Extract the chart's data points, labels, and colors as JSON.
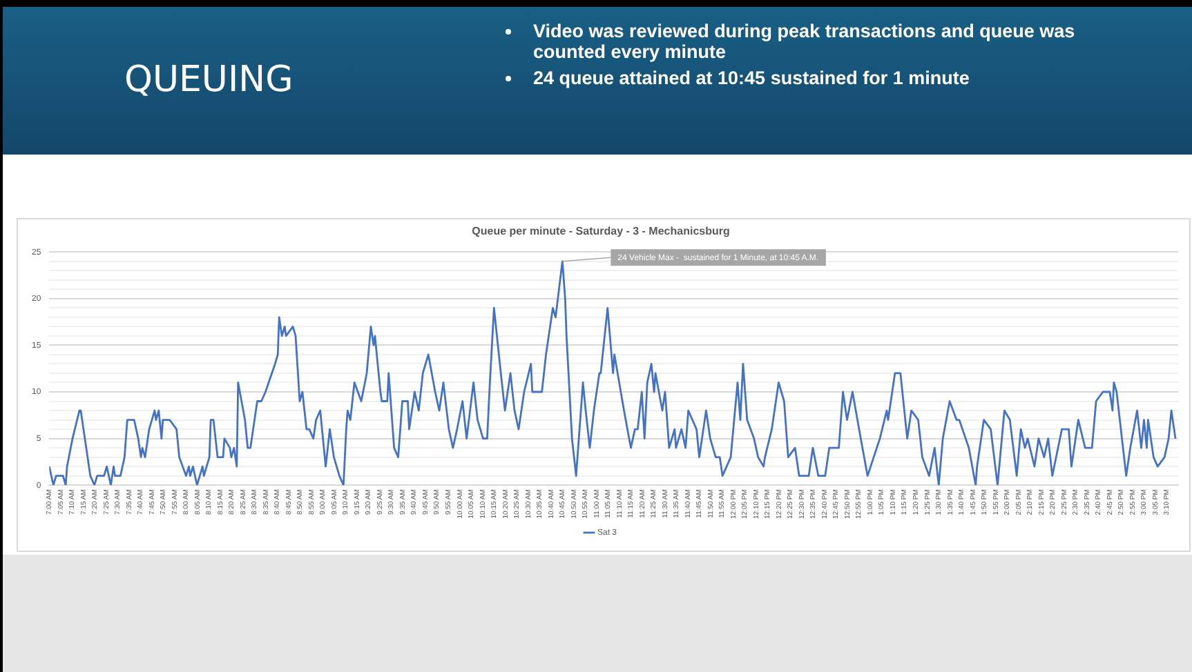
{
  "chart_data": {
    "type": "line",
    "title": "QUEUING",
    "subtitle": "Queue per minute - Saturday - 3 - Mechanicsburg",
    "annotations": [
      "Video was reviewed during peak transactions and queue was counted every minute",
      "24 queue attained at 10:45 sustained for 1 minute",
      {
        "text": "24 Vehicle Max -  sustained for 1 Minute, at 10:45 A.M.",
        "x": 10.75,
        "y": 24
      }
    ],
    "x": [
      7.0,
      7.03,
      7.05,
      7.1,
      7.12,
      7.13,
      7.17,
      7.22,
      7.23,
      7.27,
      7.3,
      7.33,
      7.35,
      7.4,
      7.42,
      7.45,
      7.47,
      7.48,
      7.52,
      7.55,
      7.57,
      7.62,
      7.65,
      7.67,
      7.68,
      7.7,
      7.73,
      7.77,
      7.78,
      7.8,
      7.82,
      7.83,
      7.88,
      7.93,
      7.95,
      8.0,
      8.02,
      8.03,
      8.05,
      8.08,
      8.12,
      8.13,
      8.17,
      8.18,
      8.2,
      8.23,
      8.27,
      8.28,
      8.32,
      8.33,
      8.35,
      8.37,
      8.38,
      8.43,
      8.45,
      8.47,
      8.52,
      8.55,
      8.58,
      8.65,
      8.67,
      8.68,
      8.7,
      8.72,
      8.73,
      8.78,
      8.8,
      8.83,
      8.85,
      8.88,
      8.9,
      8.93,
      8.95,
      8.98,
      9.02,
      9.05,
      9.08,
      9.12,
      9.15,
      9.17,
      9.18,
      9.2,
      9.23,
      9.28,
      9.32,
      9.35,
      9.37,
      9.38,
      9.42,
      9.43,
      9.47,
      9.48,
      9.52,
      9.55,
      9.58,
      9.62,
      9.63,
      9.67,
      9.7,
      9.73,
      9.77,
      9.82,
      9.85,
      9.88,
      9.92,
      9.95,
      9.98,
      10.02,
      10.05,
      10.1,
      10.13,
      10.17,
      10.2,
      10.22,
      10.25,
      10.3,
      10.33,
      10.37,
      10.4,
      10.43,
      10.47,
      10.52,
      10.53,
      10.6,
      10.63,
      10.68,
      10.7,
      10.75,
      10.77,
      10.78,
      10.82,
      10.85,
      10.9,
      10.92,
      10.95,
      10.98,
      11.02,
      11.03,
      11.08,
      11.12,
      11.13,
      11.2,
      11.25,
      11.28,
      11.3,
      11.33,
      11.35,
      11.37,
      11.4,
      11.42,
      11.43,
      11.48,
      11.5,
      11.53,
      11.57,
      11.58,
      11.62,
      11.65,
      11.67,
      11.73,
      11.75,
      11.8,
      11.83,
      11.87,
      11.9,
      11.92,
      11.95,
      11.98,
      12.03,
      12.05,
      12.07,
      12.1,
      12.15,
      12.18,
      12.22,
      12.23,
      12.28,
      12.33,
      12.35,
      12.37,
      12.4,
      12.45,
      12.48,
      12.55,
      12.58,
      12.62,
      12.67,
      12.7,
      12.77,
      12.8,
      12.83,
      12.87,
      12.93,
      12.98,
      13.07,
      13.12,
      13.13,
      13.18,
      13.22,
      13.27,
      13.3,
      13.35,
      13.38,
      13.43,
      13.47,
      13.5,
      13.53,
      13.58,
      13.63,
      13.65,
      13.72,
      13.77,
      13.78,
      13.83,
      13.88,
      13.93,
      13.98,
      14.02,
      14.07,
      14.1,
      14.13,
      14.15,
      14.2,
      14.23,
      14.27,
      14.3,
      14.33,
      14.4,
      14.45,
      14.47,
      14.52,
      14.57,
      14.62,
      14.65,
      14.7,
      14.75,
      14.77,
      14.78,
      14.8,
      14.87,
      14.9,
      14.95,
      14.98,
      15.0,
      15.02,
      15.03,
      15.07,
      15.1,
      15.15,
      15.18,
      15.2,
      15.23
    ],
    "series": [
      {
        "name": "Sat 3",
        "color": "#4472c4",
        "values": [
          2,
          0,
          1,
          1,
          0,
          2,
          5,
          8,
          8,
          4,
          1,
          0,
          1,
          1,
          2,
          0,
          2,
          1,
          1,
          3,
          7,
          7,
          5,
          3,
          4,
          3,
          6,
          8,
          7,
          8,
          5,
          7,
          7,
          6,
          3,
          1,
          2,
          1,
          2,
          0,
          2,
          1,
          3,
          7,
          7,
          3,
          3,
          5,
          4,
          3,
          4,
          2,
          11,
          7,
          4,
          4,
          9,
          9,
          10,
          13,
          14,
          18,
          16,
          17,
          16,
          17,
          16,
          9,
          10,
          6,
          6,
          5,
          7,
          8,
          2,
          6,
          3,
          1,
          0,
          6,
          8,
          7,
          11,
          9,
          12,
          17,
          15,
          16,
          10,
          9,
          9,
          12,
          4,
          3,
          9,
          9,
          6,
          10,
          8,
          12,
          14,
          10,
          8,
          11,
          6,
          4,
          6,
          9,
          5,
          11,
          7,
          5,
          5,
          11,
          19,
          12,
          8,
          12,
          8,
          6,
          10,
          13,
          10,
          10,
          14,
          19,
          18,
          24,
          20,
          16,
          5,
          1,
          11,
          8,
          4,
          8,
          12,
          12,
          19,
          12,
          14,
          8,
          4,
          6,
          6,
          10,
          5,
          11,
          13,
          10,
          12,
          8,
          10,
          4,
          6,
          4,
          6,
          4,
          8,
          6,
          3,
          8,
          5,
          3,
          3,
          1,
          2,
          3,
          11,
          7,
          13,
          7,
          5,
          3,
          2,
          3,
          6,
          11,
          10,
          9,
          3,
          4,
          1,
          1,
          4,
          1,
          1,
          4,
          4,
          10,
          7,
          10,
          5,
          1,
          5,
          8,
          7,
          12,
          12,
          5,
          8,
          7,
          3,
          1,
          4,
          0,
          5,
          9,
          7,
          7,
          4,
          0,
          2,
          7,
          6,
          0,
          8,
          7,
          1,
          6,
          4,
          5,
          2,
          5,
          3,
          5,
          1,
          6,
          6,
          2,
          7,
          4,
          4,
          9,
          10,
          10,
          8,
          11,
          10,
          1,
          4,
          8,
          4,
          7,
          4,
          7,
          3,
          2,
          3,
          5,
          8,
          5
        ]
      }
    ],
    "xlim": [
      7,
      15.25
    ],
    "xticks": [
      {
        "value": 7,
        "label": "7:00 AM"
      },
      {
        "value": 7.0833,
        "label": "7:05 AM"
      },
      {
        "value": 7.1667,
        "label": "7:10 AM"
      },
      {
        "value": 7.25,
        "label": "7:15 AM"
      },
      {
        "value": 7.3333,
        "label": "7:20 AM"
      },
      {
        "value": 7.4167,
        "label": "7:25 AM"
      },
      {
        "value": 7.5,
        "label": "7:30 AM"
      },
      {
        "value": 7.5833,
        "label": "7:35 AM"
      },
      {
        "value": 7.6667,
        "label": "7:40 AM"
      },
      {
        "value": 7.75,
        "label": "7:45 AM"
      },
      {
        "value": 7.8333,
        "label": "7:50 AM"
      },
      {
        "value": 7.9167,
        "label": "7:55 AM"
      },
      {
        "value": 8,
        "label": "8:00 AM"
      },
      {
        "value": 8.0833,
        "label": "8:05 AM"
      },
      {
        "value": 8.1667,
        "label": "8:10 AM"
      },
      {
        "value": 8.25,
        "label": "8:15 AM"
      },
      {
        "value": 8.3333,
        "label": "8:20 AM"
      },
      {
        "value": 8.4167,
        "label": "8:25 AM"
      },
      {
        "value": 8.5,
        "label": "8:30 AM"
      },
      {
        "value": 8.5833,
        "label": "8:35 AM"
      },
      {
        "value": 8.6667,
        "label": "8:40 AM"
      },
      {
        "value": 8.75,
        "label": "8:45 AM"
      },
      {
        "value": 8.8333,
        "label": "8:50 AM"
      },
      {
        "value": 8.9167,
        "label": "8:55 AM"
      },
      {
        "value": 9,
        "label": "9:00 AM"
      },
      {
        "value": 9.0833,
        "label": "9:05 AM"
      },
      {
        "value": 9.1667,
        "label": "9:10 AM"
      },
      {
        "value": 9.25,
        "label": "9:15 AM"
      },
      {
        "value": 9.3333,
        "label": "9:20 AM"
      },
      {
        "value": 9.4167,
        "label": "9:25 AM"
      },
      {
        "value": 9.5,
        "label": "9:30 AM"
      },
      {
        "value": 9.5833,
        "label": "9:35 AM"
      },
      {
        "value": 9.6667,
        "label": "9:40 AM"
      },
      {
        "value": 9.75,
        "label": "9:45 AM"
      },
      {
        "value": 9.8333,
        "label": "9:50 AM"
      },
      {
        "value": 9.9167,
        "label": "9:55 AM"
      },
      {
        "value": 10,
        "label": "10:00 AM"
      },
      {
        "value": 10.0833,
        "label": "10:05 AM"
      },
      {
        "value": 10.1667,
        "label": "10:10 AM"
      },
      {
        "value": 10.25,
        "label": "10:15 AM"
      },
      {
        "value": 10.3333,
        "label": "10:20 AM"
      },
      {
        "value": 10.4167,
        "label": "10:25 AM"
      },
      {
        "value": 10.5,
        "label": "10:30 AM"
      },
      {
        "value": 10.5833,
        "label": "10:35 AM"
      },
      {
        "value": 10.6667,
        "label": "10:40 AM"
      },
      {
        "value": 10.75,
        "label": "10:45 AM"
      },
      {
        "value": 10.8333,
        "label": "10:50 AM"
      },
      {
        "value": 10.9167,
        "label": "10:55 AM"
      },
      {
        "value": 11,
        "label": "11:00 AM"
      },
      {
        "value": 11.0833,
        "label": "11:05 AM"
      },
      {
        "value": 11.1667,
        "label": "11:10 AM"
      },
      {
        "value": 11.25,
        "label": "11:15 AM"
      },
      {
        "value": 11.3333,
        "label": "11:20 AM"
      },
      {
        "value": 11.4167,
        "label": "11:25 AM"
      },
      {
        "value": 11.5,
        "label": "11:30 AM"
      },
      {
        "value": 11.5833,
        "label": "11:35 AM"
      },
      {
        "value": 11.6667,
        "label": "11:40 AM"
      },
      {
        "value": 11.75,
        "label": "11:45 AM"
      },
      {
        "value": 11.8333,
        "label": "11:50 AM"
      },
      {
        "value": 11.9167,
        "label": "11:55 AM"
      },
      {
        "value": 12,
        "label": "12:00 PM"
      },
      {
        "value": 12.0833,
        "label": "12:05 PM"
      },
      {
        "value": 12.1667,
        "label": "12:10 PM"
      },
      {
        "value": 12.25,
        "label": "12:15 PM"
      },
      {
        "value": 12.3333,
        "label": "12:20 PM"
      },
      {
        "value": 12.4167,
        "label": "12:25 PM"
      },
      {
        "value": 12.5,
        "label": "12:30 PM"
      },
      {
        "value": 12.5833,
        "label": "12:35 PM"
      },
      {
        "value": 12.6667,
        "label": "12:40 PM"
      },
      {
        "value": 12.75,
        "label": "12:45 PM"
      },
      {
        "value": 12.8333,
        "label": "12:50 PM"
      },
      {
        "value": 12.9167,
        "label": "12:55 PM"
      },
      {
        "value": 13,
        "label": "1:00 PM"
      },
      {
        "value": 13.0833,
        "label": "1:05 PM"
      },
      {
        "value": 13.1667,
        "label": "1:10 PM"
      },
      {
        "value": 13.25,
        "label": "1:15 PM"
      },
      {
        "value": 13.3333,
        "label": "1:20 PM"
      },
      {
        "value": 13.4167,
        "label": "1:25 PM"
      },
      {
        "value": 13.5,
        "label": "1:30 PM"
      },
      {
        "value": 13.5833,
        "label": "1:35 PM"
      },
      {
        "value": 13.6667,
        "label": "1:40 PM"
      },
      {
        "value": 13.75,
        "label": "1:45 PM"
      },
      {
        "value": 13.8333,
        "label": "1:50 PM"
      },
      {
        "value": 13.9167,
        "label": "1:55 PM"
      },
      {
        "value": 14,
        "label": "2:00 PM"
      },
      {
        "value": 14.0833,
        "label": "2:05 PM"
      },
      {
        "value": 14.1667,
        "label": "2:10 PM"
      },
      {
        "value": 14.25,
        "label": "2:15 PM"
      },
      {
        "value": 14.3333,
        "label": "2:20 PM"
      },
      {
        "value": 14.4167,
        "label": "2:25 PM"
      },
      {
        "value": 14.5,
        "label": "2:30 PM"
      },
      {
        "value": 14.5833,
        "label": "2:35 PM"
      },
      {
        "value": 14.6667,
        "label": "2:40 PM"
      },
      {
        "value": 14.75,
        "label": "2:45 PM"
      },
      {
        "value": 14.8333,
        "label": "2:50 PM"
      },
      {
        "value": 14.9167,
        "label": "2:55 PM"
      },
      {
        "value": 15,
        "label": "3:00 PM"
      },
      {
        "value": 15.0833,
        "label": "3:05 PM"
      },
      {
        "value": 15.1667,
        "label": "3:10 PM"
      }
    ],
    "ylim": [
      0,
      25
    ],
    "yticks": [
      0,
      {
        "value": 1,
        "label": null
      },
      {
        "value": 2,
        "label": null
      },
      {
        "value": 3,
        "label": null
      },
      {
        "value": 4,
        "label": null
      },
      5,
      {
        "value": 6,
        "label": null
      },
      {
        "value": 7,
        "label": null
      },
      {
        "value": 8,
        "label": null
      },
      {
        "value": 9,
        "label": null
      },
      10,
      {
        "value": 11,
        "label": null
      },
      {
        "value": 12,
        "label": null
      },
      {
        "value": 13,
        "label": null
      },
      {
        "value": 14,
        "label": null
      },
      15,
      {
        "value": 16,
        "label": null
      },
      {
        "value": 17,
        "label": null
      },
      {
        "value": 18,
        "label": null
      },
      {
        "value": 19,
        "label": null
      },
      20,
      {
        "value": 21,
        "label": null
      },
      {
        "value": 22,
        "label": null
      },
      {
        "value": 23,
        "label": null
      },
      {
        "value": 24,
        "label": null
      },
      25
    ],
    "grid": "y",
    "legend": "bottom",
    "marker": "none",
    "line_style": "solid"
  }
}
